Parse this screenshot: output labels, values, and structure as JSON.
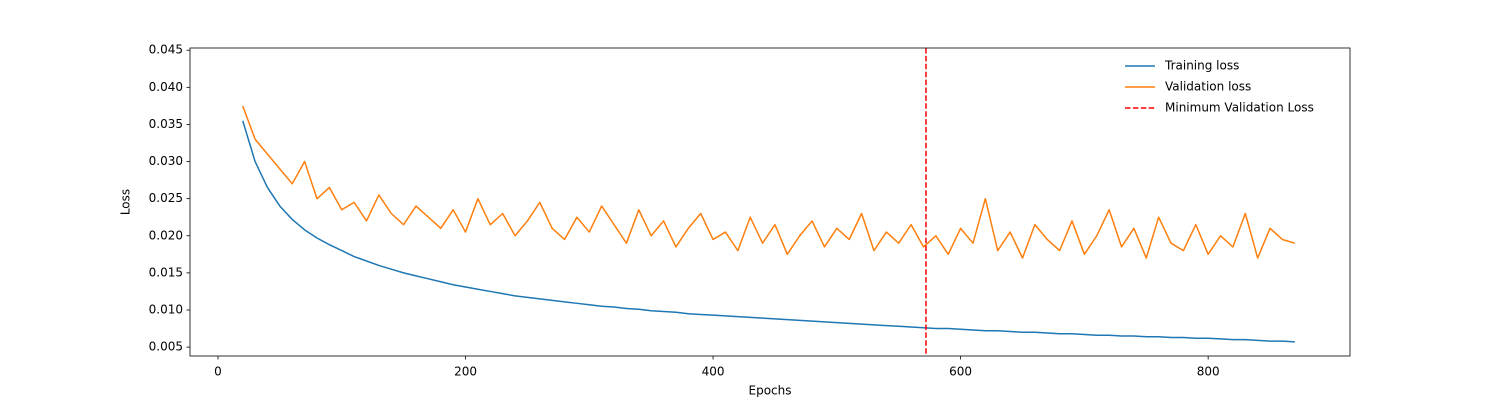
{
  "chart_data": {
    "type": "line",
    "xlabel": "Epochs",
    "ylabel": "Loss",
    "x": [
      20,
      30,
      40,
      50,
      60,
      70,
      80,
      90,
      100,
      110,
      120,
      130,
      140,
      150,
      160,
      170,
      180,
      190,
      200,
      210,
      220,
      230,
      240,
      250,
      260,
      270,
      280,
      290,
      300,
      310,
      320,
      330,
      340,
      350,
      360,
      370,
      380,
      390,
      400,
      410,
      420,
      430,
      440,
      450,
      460,
      470,
      480,
      490,
      500,
      510,
      520,
      530,
      540,
      550,
      560,
      570,
      580,
      590,
      600,
      610,
      620,
      630,
      640,
      650,
      660,
      670,
      680,
      690,
      700,
      710,
      720,
      730,
      740,
      750,
      760,
      770,
      780,
      790,
      800,
      810,
      820,
      830,
      840,
      850,
      860,
      870
    ],
    "series": [
      {
        "name": "Training loss",
        "color": "#1f77b4",
        "values": [
          0.0355,
          0.03,
          0.0265,
          0.024,
          0.0222,
          0.0208,
          0.0197,
          0.0188,
          0.018,
          0.0172,
          0.0166,
          0.016,
          0.0155,
          0.015,
          0.0146,
          0.0142,
          0.0138,
          0.0134,
          0.0131,
          0.0128,
          0.0125,
          0.0122,
          0.0119,
          0.0117,
          0.0115,
          0.0113,
          0.0111,
          0.0109,
          0.0107,
          0.0105,
          0.0104,
          0.0102,
          0.0101,
          0.0099,
          0.0098,
          0.0097,
          0.0095,
          0.0094,
          0.0093,
          0.0092,
          0.0091,
          0.009,
          0.0089,
          0.0088,
          0.0087,
          0.0086,
          0.0085,
          0.0084,
          0.0083,
          0.0082,
          0.0081,
          0.008,
          0.0079,
          0.0078,
          0.0077,
          0.0076,
          0.0075,
          0.0075,
          0.0074,
          0.0073,
          0.0072,
          0.0072,
          0.0071,
          0.007,
          0.007,
          0.0069,
          0.0068,
          0.0068,
          0.0067,
          0.0066,
          0.0066,
          0.0065,
          0.0065,
          0.0064,
          0.0064,
          0.0063,
          0.0063,
          0.0062,
          0.0062,
          0.0061,
          0.006,
          0.006,
          0.0059,
          0.0058,
          0.0058,
          0.0057
        ]
      },
      {
        "name": "Validation loss",
        "color": "#ff7f0e",
        "values": [
          0.0375,
          0.033,
          0.031,
          0.029,
          0.027,
          0.03,
          0.025,
          0.0265,
          0.0235,
          0.0245,
          0.022,
          0.0255,
          0.023,
          0.0215,
          0.024,
          0.0225,
          0.021,
          0.0235,
          0.0205,
          0.025,
          0.0215,
          0.023,
          0.02,
          0.022,
          0.0245,
          0.021,
          0.0195,
          0.0225,
          0.0205,
          0.024,
          0.0215,
          0.019,
          0.0235,
          0.02,
          0.022,
          0.0185,
          0.021,
          0.023,
          0.0195,
          0.0205,
          0.018,
          0.0225,
          0.019,
          0.0215,
          0.0175,
          0.02,
          0.022,
          0.0185,
          0.021,
          0.0195,
          0.023,
          0.018,
          0.0205,
          0.019,
          0.0215,
          0.0185,
          0.02,
          0.0175,
          0.021,
          0.019,
          0.025,
          0.018,
          0.0205,
          0.017,
          0.0215,
          0.0195,
          0.018,
          0.022,
          0.0175,
          0.02,
          0.0235,
          0.0185,
          0.021,
          0.017,
          0.0225,
          0.019,
          0.018,
          0.0215,
          0.0175,
          0.02,
          0.0185,
          0.023,
          0.017,
          0.021,
          0.0195,
          0.019
        ]
      }
    ],
    "vline": {
      "name": "Minimum Validation Loss",
      "x": 572,
      "color": "#ff0000"
    },
    "xlim": [
      -22.6,
      914.6
    ],
    "ylim": [
      0.0038,
      0.0453
    ],
    "xticks": [
      0,
      200,
      400,
      600,
      800
    ],
    "yticks": [
      0.005,
      {
        "value": 0.01,
        "label": "0.010"
      },
      0.015,
      {
        "value": 0.02,
        "label": "0.020"
      },
      0.025,
      {
        "value": 0.03,
        "label": "0.030"
      },
      0.035,
      {
        "value": 0.04,
        "label": "0.040"
      },
      0.045
    ],
    "legend": "upper right"
  }
}
